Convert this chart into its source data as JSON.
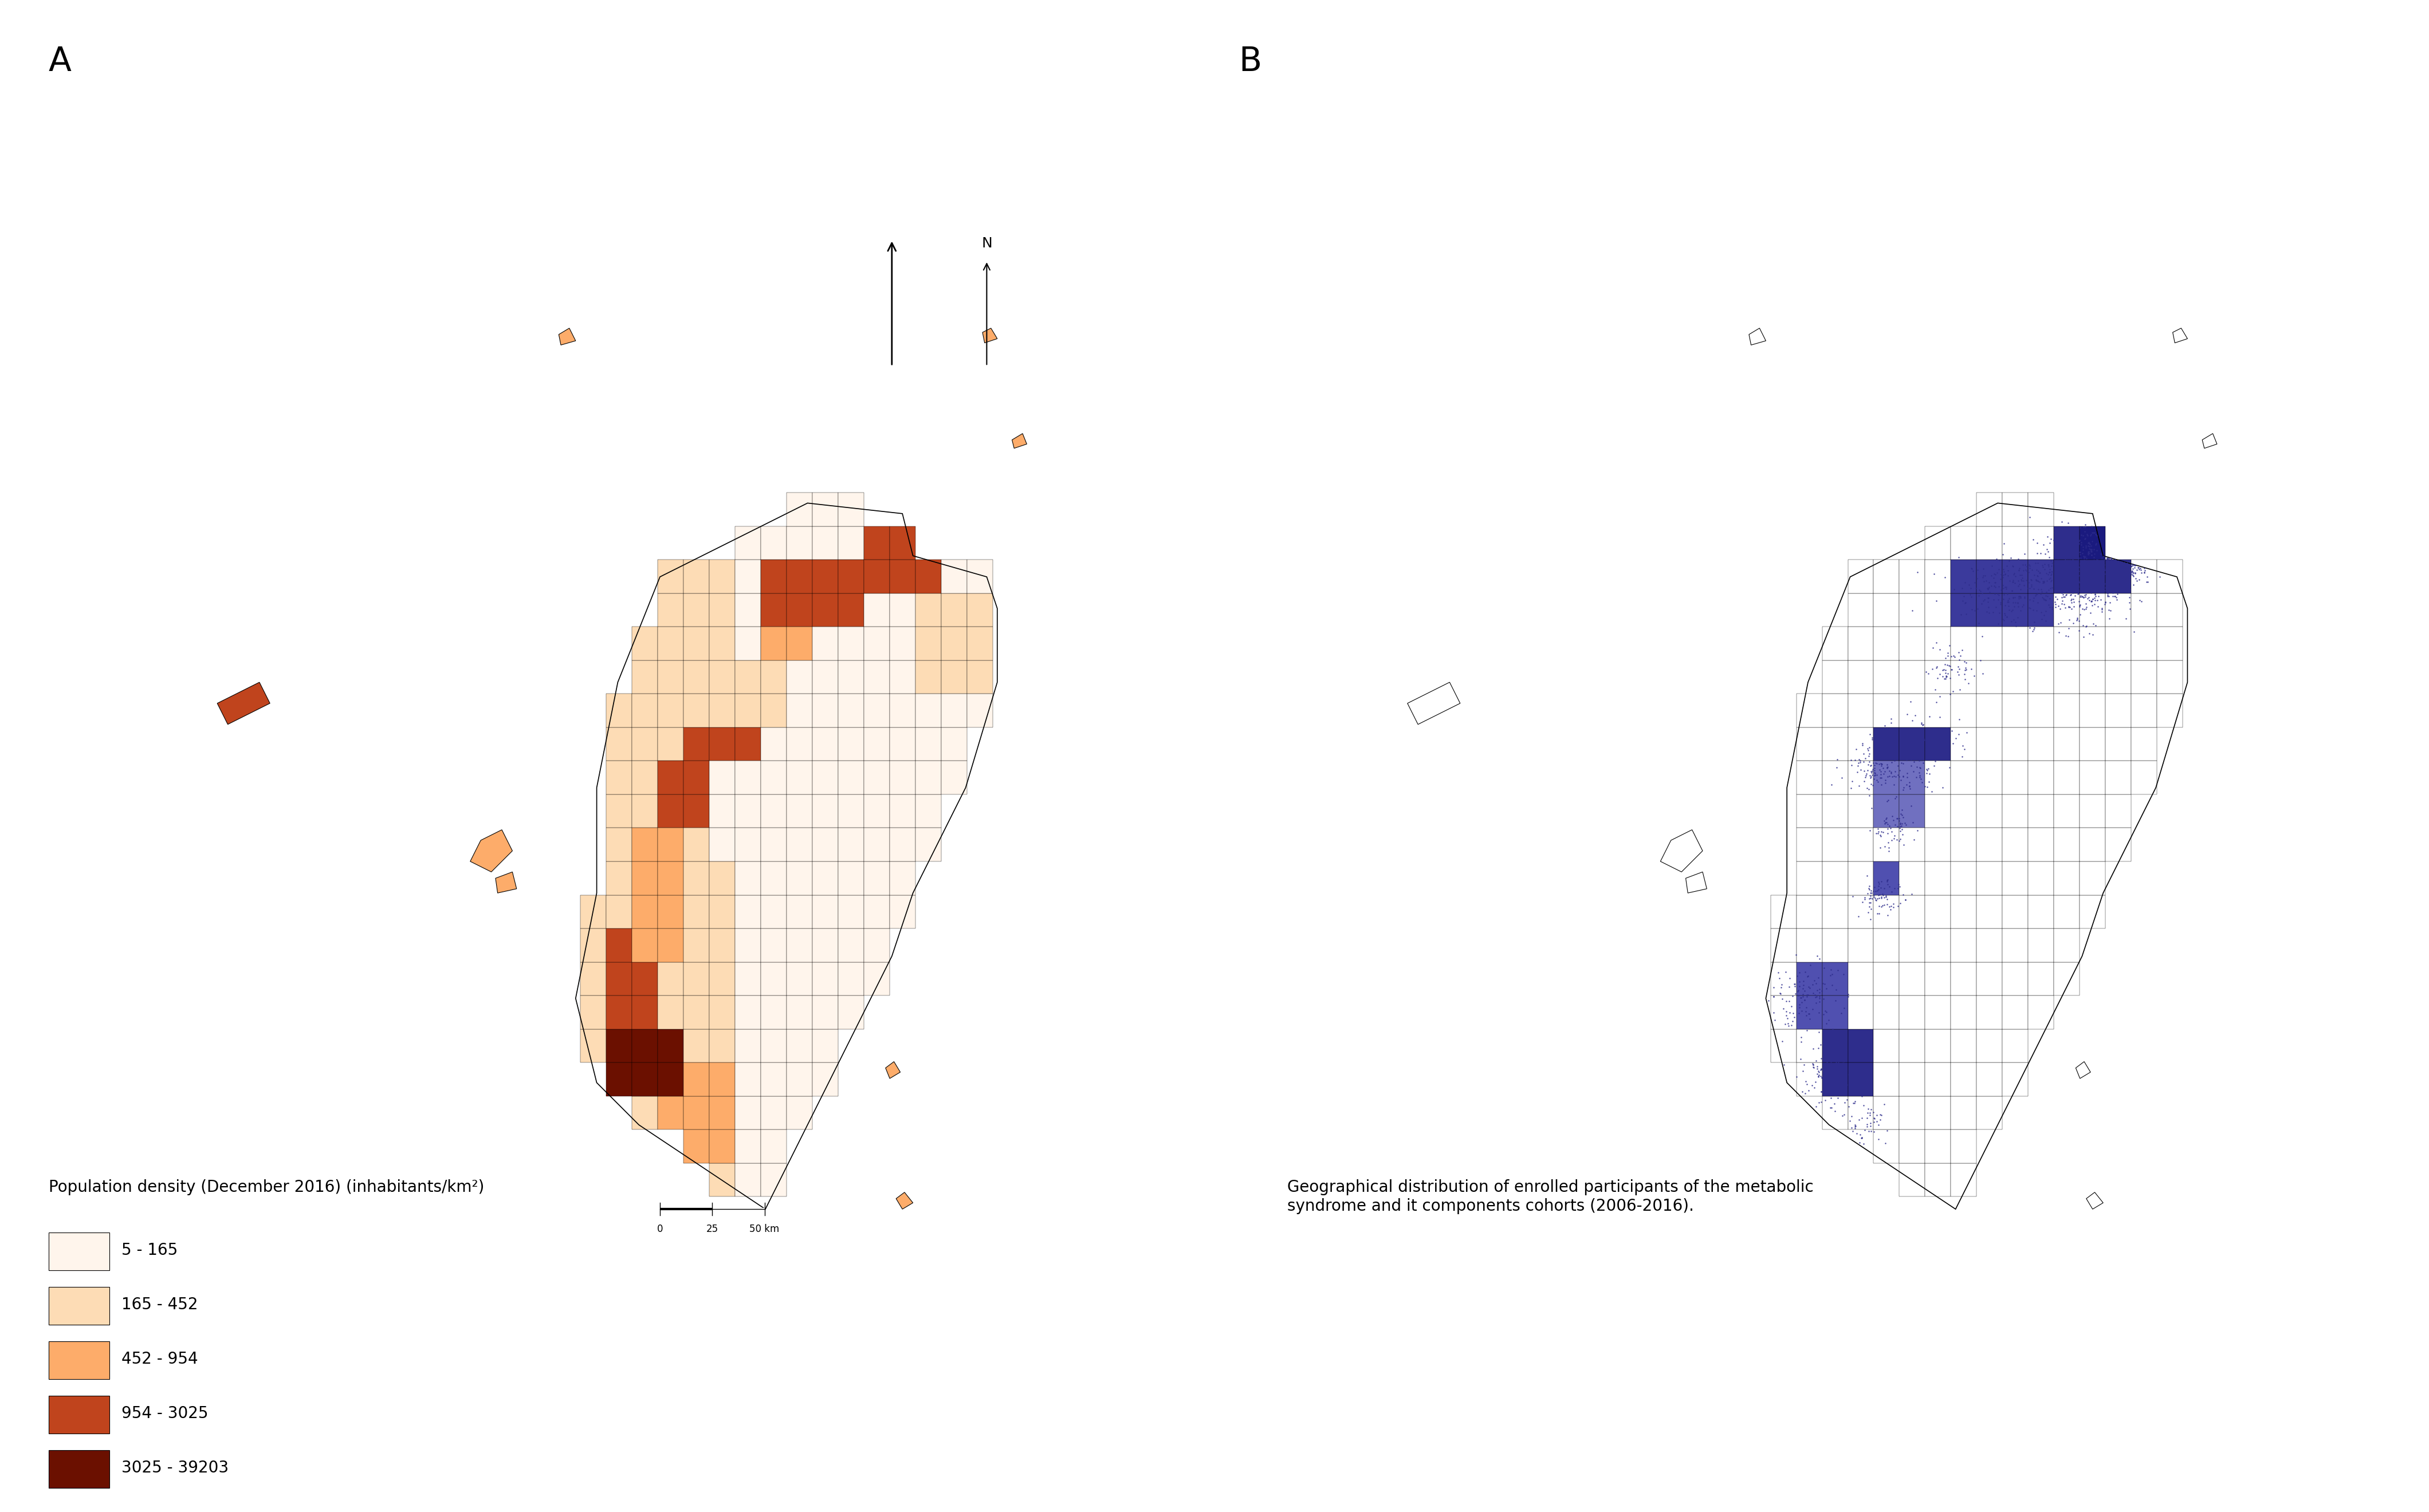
{
  "title_A": "A",
  "title_B": "B",
  "legend_title_A": "Population density (December 2016) (inhabitants/km²)",
  "legend_labels_A": [
    "5 - 165",
    "165 - 452",
    "452 - 954",
    "954 - 3025",
    "3025 - 39203"
  ],
  "legend_colors_A": [
    "#FFF5EC",
    "#FDDCB5",
    "#FDAC6A",
    "#C0441D",
    "#6B1000"
  ],
  "legend_title_B": "Geographical distribution of enrolled participants of the metabolic\nsyndrome and it components cohorts (2006-2016).",
  "dot_color_B": "#2E2D8C",
  "background_color": "#FFFFFF",
  "scale_bar_label": "0   25   50 km",
  "border_color": "#000000",
  "fill_colors": {
    "very_low": "#FFF5EC",
    "low": "#FDDCB5",
    "medium": "#FDAC6A",
    "high": "#C0441D",
    "very_high": "#6B1000"
  },
  "fig_width": 42.4,
  "fig_height": 26.4,
  "font_size_label": 28,
  "font_size_legend": 20,
  "font_size_legend_title": 20
}
